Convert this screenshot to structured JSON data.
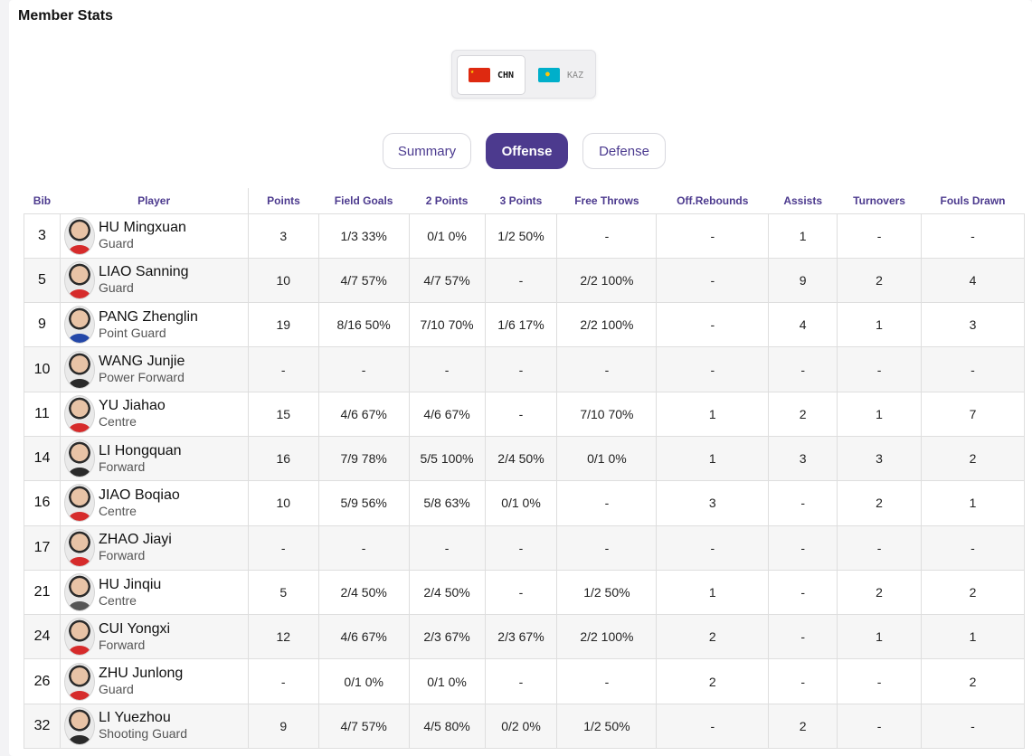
{
  "title": "Member Stats",
  "teams": [
    {
      "code": "CHN",
      "flag": "china-flag-icon",
      "active": true
    },
    {
      "code": "KAZ",
      "flag": "kazakhstan-flag-icon",
      "active": false
    }
  ],
  "tabs": [
    "Summary",
    "Offense",
    "Defense"
  ],
  "selected_tab": "Offense",
  "columns": [
    "Bib",
    "Player",
    "Points",
    "Field Goals",
    "2 Points",
    "3 Points",
    "Free Throws",
    "Off.Rebounds",
    "Assists",
    "Turnovers",
    "Fouls Drawn"
  ],
  "rows": [
    {
      "bib": "3",
      "name": "HU Mingxuan",
      "pos": "Guard",
      "points": "3",
      "fg": "1/3 33%",
      "p2": "0/1 0%",
      "p3": "1/2 50%",
      "ft": "-",
      "oreb": "-",
      "ast": "1",
      "tov": "-",
      "fd": "-"
    },
    {
      "bib": "5",
      "name": "LIAO Sanning",
      "pos": "Guard",
      "points": "10",
      "fg": "4/7 57%",
      "p2": "4/7 57%",
      "p3": "-",
      "ft": "2/2 100%",
      "oreb": "-",
      "ast": "9",
      "tov": "2",
      "fd": "4"
    },
    {
      "bib": "9",
      "name": "PANG Zhenglin",
      "pos": "Point Guard",
      "points": "19",
      "fg": "8/16 50%",
      "p2": "7/10 70%",
      "p3": "1/6 17%",
      "ft": "2/2 100%",
      "oreb": "-",
      "ast": "4",
      "tov": "1",
      "fd": "3"
    },
    {
      "bib": "10",
      "name": "WANG Junjie",
      "pos": "Power Forward",
      "points": "-",
      "fg": "-",
      "p2": "-",
      "p3": "-",
      "ft": "-",
      "oreb": "-",
      "ast": "-",
      "tov": "-",
      "fd": "-"
    },
    {
      "bib": "11",
      "name": "YU Jiahao",
      "pos": "Centre",
      "points": "15",
      "fg": "4/6 67%",
      "p2": "4/6 67%",
      "p3": "-",
      "ft": "7/10 70%",
      "oreb": "1",
      "ast": "2",
      "tov": "1",
      "fd": "7"
    },
    {
      "bib": "14",
      "name": "LI Hongquan",
      "pos": "Forward",
      "points": "16",
      "fg": "7/9 78%",
      "p2": "5/5 100%",
      "p3": "2/4 50%",
      "ft": "0/1 0%",
      "oreb": "1",
      "ast": "3",
      "tov": "3",
      "fd": "2"
    },
    {
      "bib": "16",
      "name": "JIAO Boqiao",
      "pos": "Centre",
      "points": "10",
      "fg": "5/9 56%",
      "p2": "5/8 63%",
      "p3": "0/1 0%",
      "ft": "-",
      "oreb": "3",
      "ast": "-",
      "tov": "2",
      "fd": "1"
    },
    {
      "bib": "17",
      "name": "ZHAO Jiayi",
      "pos": "Forward",
      "points": "-",
      "fg": "-",
      "p2": "-",
      "p3": "-",
      "ft": "-",
      "oreb": "-",
      "ast": "-",
      "tov": "-",
      "fd": "-"
    },
    {
      "bib": "21",
      "name": "HU Jinqiu",
      "pos": "Centre",
      "points": "5",
      "fg": "2/4 50%",
      "p2": "2/4 50%",
      "p3": "-",
      "ft": "1/2 50%",
      "oreb": "1",
      "ast": "-",
      "tov": "2",
      "fd": "2"
    },
    {
      "bib": "24",
      "name": "CUI Yongxi",
      "pos": "Forward",
      "points": "12",
      "fg": "4/6 67%",
      "p2": "2/3 67%",
      "p3": "2/3 67%",
      "ft": "2/2 100%",
      "oreb": "2",
      "ast": "-",
      "tov": "1",
      "fd": "1"
    },
    {
      "bib": "26",
      "name": "ZHU Junlong",
      "pos": "Guard",
      "points": "-",
      "fg": "0/1 0%",
      "p2": "0/1 0%",
      "p3": "-",
      "ft": "-",
      "oreb": "2",
      "ast": "-",
      "tov": "-",
      "fd": "2"
    },
    {
      "bib": "32",
      "name": "LI Yuezhou",
      "pos": "Shooting Guard",
      "points": "9",
      "fg": "4/7 57%",
      "p2": "4/5 80%",
      "p3": "0/2 0%",
      "ft": "1/2 50%",
      "oreb": "-",
      "ast": "2",
      "tov": "-",
      "fd": "-"
    }
  ],
  "colors": {
    "accent": "#4c3a8e",
    "row_alt": "#f6f6f6"
  }
}
